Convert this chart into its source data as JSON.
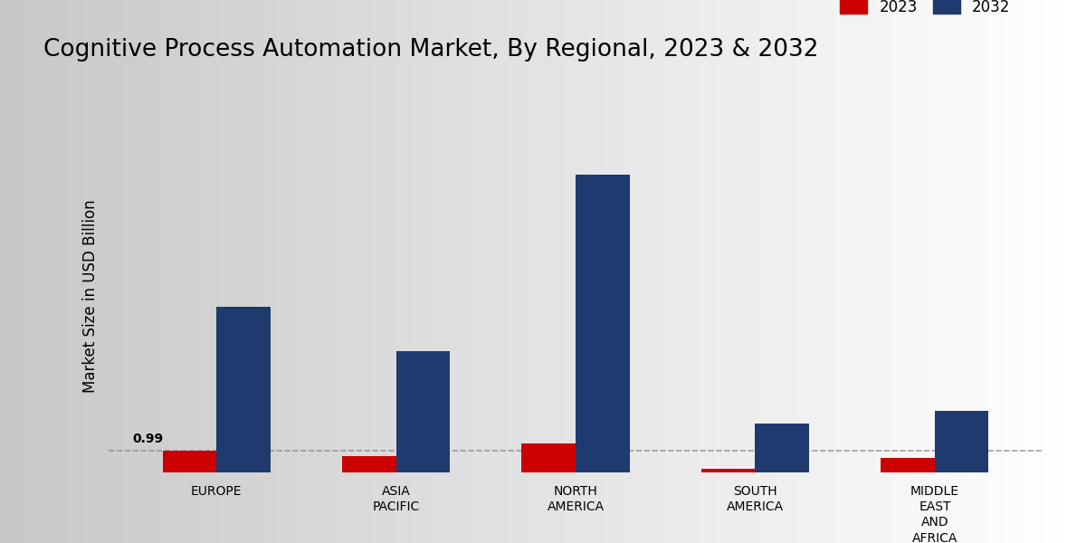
{
  "title": "Cognitive Process Automation Market, By Regional, 2023 & 2032",
  "ylabel": "Market Size in USD Billion",
  "categories": [
    "EUROPE",
    "ASIA\nPACIFIC",
    "NORTH\nAMERICA",
    "SOUTH\nAMERICA",
    "MIDDLE\nEAST\nAND\nAFRICA"
  ],
  "values_2023": [
    0.99,
    0.75,
    1.3,
    0.18,
    0.65
  ],
  "values_2032": [
    7.5,
    5.5,
    13.5,
    2.2,
    2.8
  ],
  "color_2023": "#cc0000",
  "color_2032": "#1e3a6e",
  "dashed_line_y": 0.99,
  "annotation_text": "0.99",
  "annotation_region": 0,
  "bar_width": 0.3,
  "legend_labels": [
    "2023",
    "2032"
  ],
  "title_fontsize": 19,
  "axis_label_fontsize": 12,
  "tick_fontsize": 10,
  "ylim": [
    0,
    16
  ],
  "bottom_bar_color": "#cc0000"
}
